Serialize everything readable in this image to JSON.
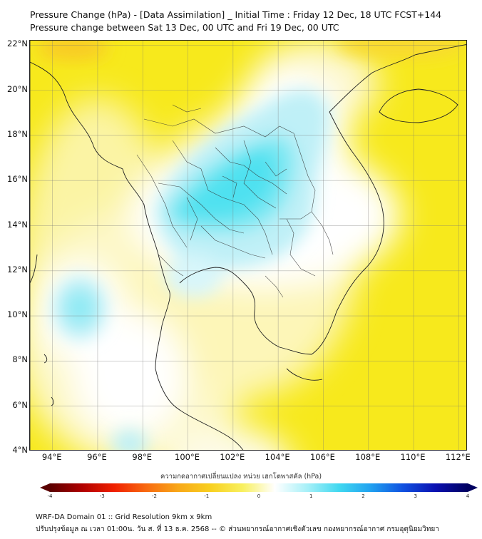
{
  "title": {
    "line1": "Pressure Change (hPa) - [Data Assimilation] _ Initial Time : Friday 12 Dec, 18 UTC FCST+144",
    "line2": "Pressure change between Sat 13 Dec, 00 UTC and Fri 19 Dec, 00 UTC"
  },
  "map": {
    "lat_range": [
      4,
      22.2
    ],
    "lon_range": [
      93,
      112.4
    ],
    "lat_ticks": [
      {
        "value": 22,
        "label": "22°N"
      },
      {
        "value": 20,
        "label": "20°N"
      },
      {
        "value": 18,
        "label": "18°N"
      },
      {
        "value": 16,
        "label": "16°N"
      },
      {
        "value": 14,
        "label": "14°N"
      },
      {
        "value": 12,
        "label": "12°N"
      },
      {
        "value": 10,
        "label": "10°N"
      },
      {
        "value": 8,
        "label": "8°N"
      },
      {
        "value": 6,
        "label": "6°N"
      },
      {
        "value": 4,
        "label": "4°N"
      }
    ],
    "lon_ticks": [
      {
        "value": 94,
        "label": "94°E"
      },
      {
        "value": 96,
        "label": "96°E"
      },
      {
        "value": 98,
        "label": "98°E"
      },
      {
        "value": 100,
        "label": "100°E"
      },
      {
        "value": 102,
        "label": "102°E"
      },
      {
        "value": 104,
        "label": "104°E"
      },
      {
        "value": 106,
        "label": "106°E"
      },
      {
        "value": 108,
        "label": "108°E"
      },
      {
        "value": 110,
        "label": "110°E"
      },
      {
        "value": 112,
        "label": "112°E"
      }
    ],
    "grid_lines": true,
    "field_colors": {
      "yellow": "#f7e91c",
      "pale_yellow": "#fbf4a4",
      "white": "#ffffff",
      "light_cyan": "#bff0f7",
      "cyan": "#4fe1f0",
      "orange": "#f8ca26"
    }
  },
  "colorbar": {
    "title": "ความกดอากาศเปลี่ยนแปลง หน่วย เฮกโตพาสคัล (hPa)",
    "min": -4,
    "max": 4,
    "ticks": [
      {
        "value": -4,
        "label": "-4"
      },
      {
        "value": -3,
        "label": "-3"
      },
      {
        "value": -2,
        "label": "-2"
      },
      {
        "value": -1,
        "label": "-1"
      },
      {
        "value": 0,
        "label": "0"
      },
      {
        "value": 1,
        "label": "1"
      },
      {
        "value": 2,
        "label": "2"
      },
      {
        "value": 3,
        "label": "3"
      },
      {
        "value": 4,
        "label": "4"
      }
    ],
    "extend": "both",
    "colors": [
      "#5a0000",
      "#b00000",
      "#f02000",
      "#f86a10",
      "#f8a818",
      "#f8d020",
      "#f8f060",
      "#ffffff",
      "#a8f0f8",
      "#40d8f0",
      "#20a0f0",
      "#1050e0",
      "#0a10b0",
      "#000060"
    ]
  },
  "footer": {
    "line1": "WRF-DA Domain 01 :: Grid Resolution 9km x 9km",
    "line2": "ปรับปรุงข้อมูล ณ เวลา 01:00น. วัน ส. ที่ 13 ธ.ค. 2568 -- © ส่วนพยากรณ์อากาศเชิงตัวเลข กองพยากรณ์อากาศ กรมอุตุนิยมวิทยา"
  }
}
